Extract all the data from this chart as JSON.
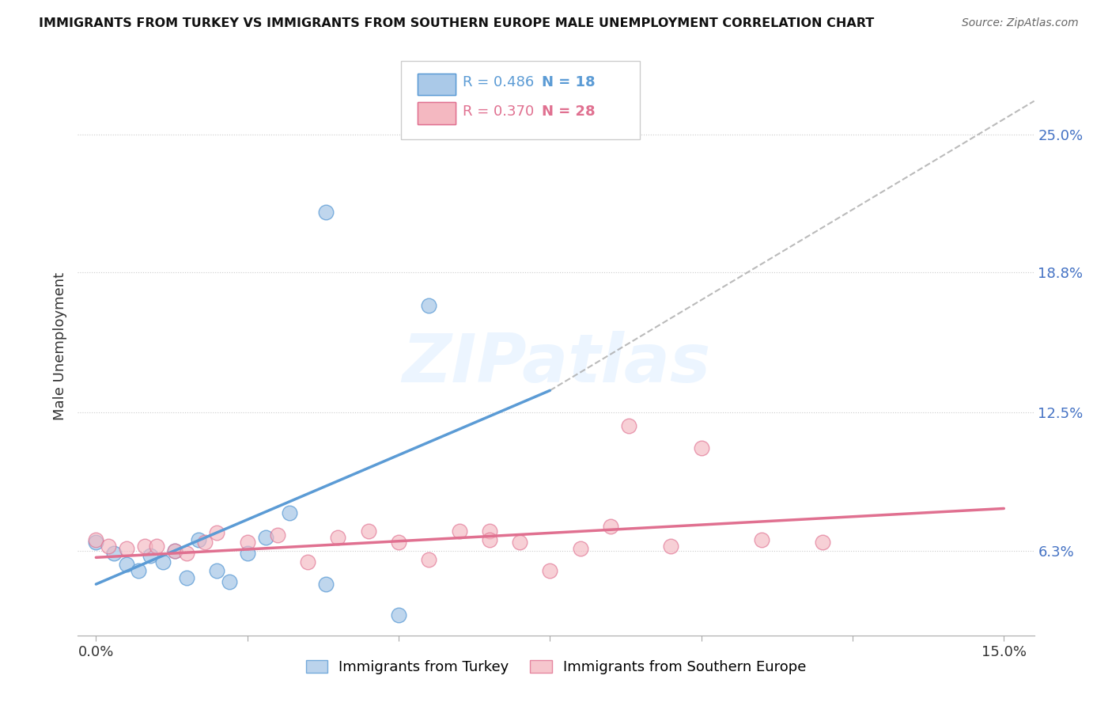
{
  "title": "IMMIGRANTS FROM TURKEY VS IMMIGRANTS FROM SOUTHERN EUROPE MALE UNEMPLOYMENT CORRELATION CHART",
  "source": "Source: ZipAtlas.com",
  "ylabel": "Male Unemployment",
  "right_yticks": [
    "25.0%",
    "18.8%",
    "12.5%",
    "6.3%"
  ],
  "right_ytick_vals": [
    0.25,
    0.188,
    0.125,
    0.063
  ],
  "legend_blue_R": "R = 0.486",
  "legend_blue_N": "N = 18",
  "legend_pink_R": "R = 0.370",
  "legend_pink_N": "N = 28",
  "legend_blue_label": "Immigrants from Turkey",
  "legend_pink_label": "Immigrants from Southern Europe",
  "background_color": "#ffffff",
  "blue_fill_color": "#aac9e8",
  "blue_edge_color": "#5b9bd5",
  "pink_fill_color": "#f4b8c1",
  "pink_edge_color": "#e07090",
  "watermark": "ZIPatlas",
  "blue_scatter_x": [
    0.0,
    0.003,
    0.005,
    0.007,
    0.009,
    0.011,
    0.013,
    0.015,
    0.017,
    0.02,
    0.022,
    0.025,
    0.028,
    0.032,
    0.038,
    0.05,
    0.038,
    0.055
  ],
  "blue_scatter_y": [
    0.067,
    0.062,
    0.057,
    0.054,
    0.061,
    0.058,
    0.063,
    0.051,
    0.068,
    0.054,
    0.049,
    0.062,
    0.069,
    0.08,
    0.048,
    0.034,
    0.215,
    0.173
  ],
  "pink_scatter_x": [
    0.0,
    0.002,
    0.005,
    0.008,
    0.01,
    0.013,
    0.015,
    0.018,
    0.02,
    0.025,
    0.03,
    0.035,
    0.04,
    0.045,
    0.05,
    0.055,
    0.06,
    0.065,
    0.065,
    0.07,
    0.075,
    0.08,
    0.085,
    0.088,
    0.095,
    0.1,
    0.11,
    0.12
  ],
  "pink_scatter_y": [
    0.068,
    0.065,
    0.064,
    0.065,
    0.065,
    0.063,
    0.062,
    0.067,
    0.071,
    0.067,
    0.07,
    0.058,
    0.069,
    0.072,
    0.067,
    0.059,
    0.072,
    0.072,
    0.068,
    0.067,
    0.054,
    0.064,
    0.074,
    0.119,
    0.065,
    0.109,
    0.068,
    0.067
  ],
  "blue_trend_x": [
    0.0,
    0.075
  ],
  "blue_trend_y": [
    0.048,
    0.135
  ],
  "pink_trend_x": [
    0.0,
    0.15
  ],
  "pink_trend_y": [
    0.06,
    0.082
  ],
  "dashed_line_x": [
    0.075,
    0.155
  ],
  "dashed_line_y": [
    0.135,
    0.265
  ],
  "xlim": [
    -0.003,
    0.155
  ],
  "ylim": [
    0.025,
    0.285
  ],
  "xtick_positions": [
    0.0,
    0.025,
    0.05,
    0.075,
    0.1,
    0.125,
    0.15
  ],
  "grid_vals": [
    0.063,
    0.125,
    0.188,
    0.25
  ]
}
